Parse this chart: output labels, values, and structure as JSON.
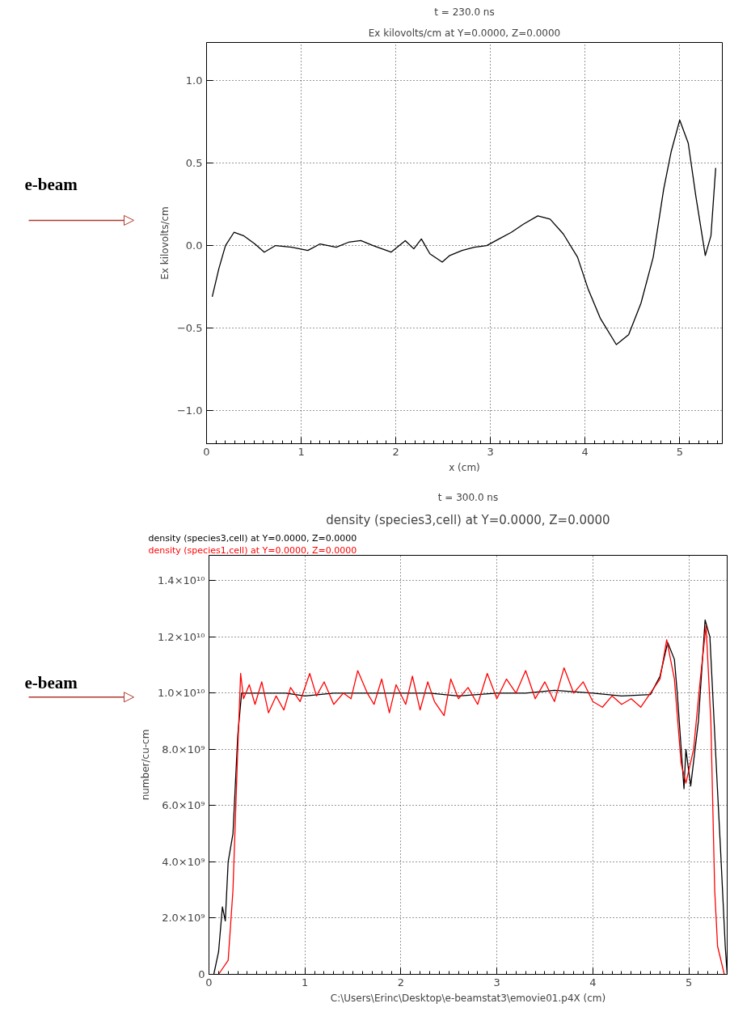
{
  "chart_data": [
    {
      "type": "line",
      "title": "t = 230.0 ns",
      "subtitle": "Ex kilovolts/cm at Y=0.0000, Z=0.0000",
      "xlabel": "x (cm)",
      "ylabel": "Ex kilovolts/cm",
      "xlim": [
        0,
        5.45
      ],
      "ylim": [
        -1.2,
        1.23
      ],
      "xticks": [
        0,
        1,
        2,
        3,
        4,
        5
      ],
      "yticks": [
        {
          "value": -1.0,
          "label": "−1.0"
        },
        {
          "value": -0.5,
          "label": "−0.5"
        },
        {
          "value": 0.0,
          "label": "0.0"
        },
        {
          "value": 0.5,
          "label": "0.5"
        },
        {
          "value": 1.0,
          "label": "1.0"
        }
      ],
      "grid": true,
      "annotations": [
        "e-beam"
      ],
      "series": [
        {
          "color": "#000000",
          "x": [
            0.06,
            0.13,
            0.2,
            0.29,
            0.39,
            0.51,
            0.61,
            0.73,
            0.9,
            1.07,
            1.2,
            1.37,
            1.5,
            1.63,
            1.76,
            1.95,
            2.1,
            2.19,
            2.27,
            2.36,
            2.49,
            2.57,
            2.7,
            2.83,
            2.96,
            3.09,
            3.22,
            3.35,
            3.5,
            3.63,
            3.77,
            3.92,
            4.03,
            4.16,
            4.33,
            4.46,
            4.59,
            4.72,
            4.83,
            4.91,
            5.0,
            5.09,
            5.17,
            5.27,
            5.33,
            5.38
          ],
          "values": [
            -0.31,
            -0.14,
            0.0,
            0.08,
            0.06,
            0.01,
            -0.04,
            0.0,
            -0.01,
            -0.03,
            0.01,
            -0.01,
            0.02,
            0.03,
            0.0,
            -0.04,
            0.03,
            -0.02,
            0.04,
            -0.05,
            -0.1,
            -0.06,
            -0.03,
            -0.01,
            0.0,
            0.04,
            0.08,
            0.13,
            0.18,
            0.16,
            0.07,
            -0.07,
            -0.26,
            -0.44,
            -0.6,
            -0.54,
            -0.35,
            -0.07,
            0.34,
            0.57,
            0.76,
            0.62,
            0.3,
            -0.06,
            0.06,
            0.47
          ]
        }
      ]
    },
    {
      "type": "line",
      "title": "t = 300.0 ns",
      "subtitle": "density (species3,cell) at Y=0.0000, Z=0.0000",
      "xlabel": "C:\\Users\\Erinc\\Desktop\\e-beamstat3\\emovie01.p4X (cm)",
      "ylabel": "number/cu-cm",
      "xlim": [
        0,
        5.4
      ],
      "ylim": [
        0,
        14900000000.0
      ],
      "xticks": [
        0,
        1,
        2,
        3,
        4,
        5
      ],
      "yticks": [
        0,
        {
          "value": 2000000000.0,
          "label": "2.0×10⁹"
        },
        {
          "value": 4000000000.0,
          "label": "4.0×10⁹"
        },
        {
          "value": 6000000000.0,
          "label": "6.0×10⁹"
        },
        {
          "value": 8000000000.0,
          "label": "8.0×10⁹"
        },
        {
          "value": 10000000000.0,
          "label": "1.0×10¹⁰"
        },
        {
          "value": 12000000000.0,
          "label": "1.2×10¹⁰"
        },
        {
          "value": 14000000000.0,
          "label": "1.4×10¹⁰"
        }
      ],
      "grid": true,
      "legend": "top left",
      "annotations": [
        "e-beam"
      ],
      "series": [
        {
          "name": "density (species3,cell) at Y=0.0000, Z=0.0000",
          "color": "#000000",
          "x": [
            0.05,
            0.1,
            0.14,
            0.17,
            0.2,
            0.25,
            0.3,
            0.34,
            0.5,
            0.8,
            1.0,
            1.3,
            1.6,
            2.0,
            2.3,
            2.6,
            3.0,
            3.3,
            3.6,
            4.0,
            4.3,
            4.6,
            4.7,
            4.78,
            4.85,
            4.88,
            4.95,
            4.97,
            5.02,
            5.1,
            5.17,
            5.22,
            5.3,
            5.33,
            5.38,
            5.4
          ],
          "values": [
            0,
            800000000.0,
            2400000000.0,
            1900000000.0,
            4000000000.0,
            5000000000.0,
            8500000000.0,
            10000000000.0,
            10000000000.0,
            10000000000.0,
            9900000000.0,
            10000000000.0,
            10000000000.0,
            10000000000.0,
            10000000000.0,
            9900000000.0,
            10000000000.0,
            10000000000.0,
            10100000000.0,
            10000000000.0,
            9900000000.0,
            9950000000.0,
            10600000000.0,
            11800000000.0,
            11200000000.0,
            10000000000.0,
            6600000000.0,
            8000000000.0,
            6700000000.0,
            9000000000.0,
            12600000000.0,
            12000000000.0,
            6500000000.0,
            4500000000.0,
            1000000000.0,
            0
          ]
        },
        {
          "name": "density (species1,cell) at Y=0.0000, Z=0.0000",
          "color": "#ff0000",
          "x": [
            0.1,
            0.2,
            0.25,
            0.3,
            0.33,
            0.36,
            0.42,
            0.48,
            0.55,
            0.62,
            0.7,
            0.78,
            0.85,
            0.95,
            1.05,
            1.12,
            1.2,
            1.3,
            1.4,
            1.48,
            1.55,
            1.65,
            1.72,
            1.8,
            1.88,
            1.95,
            2.05,
            2.12,
            2.2,
            2.28,
            2.35,
            2.45,
            2.52,
            2.6,
            2.7,
            2.8,
            2.9,
            3.0,
            3.1,
            3.2,
            3.3,
            3.4,
            3.5,
            3.6,
            3.7,
            3.8,
            3.9,
            4.0,
            4.1,
            4.2,
            4.3,
            4.4,
            4.5,
            4.6,
            4.7,
            4.77,
            4.85,
            4.92,
            4.97,
            5.05,
            5.12,
            5.18,
            5.23,
            5.27,
            5.3,
            5.37
          ],
          "values": [
            0,
            500000000.0,
            3000000000.0,
            8000000000.0,
            10700000000.0,
            9800000000.0,
            10300000000.0,
            9600000000.0,
            10400000000.0,
            9300000000.0,
            9900000000.0,
            9400000000.0,
            10200000000.0,
            9700000000.0,
            10700000000.0,
            9900000000.0,
            10400000000.0,
            9600000000.0,
            10000000000.0,
            9800000000.0,
            10800000000.0,
            10000000000.0,
            9600000000.0,
            10500000000.0,
            9300000000.0,
            10300000000.0,
            9600000000.0,
            10600000000.0,
            9400000000.0,
            10400000000.0,
            9700000000.0,
            9200000000.0,
            10500000000.0,
            9800000000.0,
            10200000000.0,
            9600000000.0,
            10700000000.0,
            9800000000.0,
            10500000000.0,
            10000000000.0,
            10800000000.0,
            9800000000.0,
            10400000000.0,
            9700000000.0,
            10900000000.0,
            10000000000.0,
            10400000000.0,
            9700000000.0,
            9500000000.0,
            9900000000.0,
            9600000000.0,
            9800000000.0,
            9500000000.0,
            10000000000.0,
            10500000000.0,
            11900000000.0,
            10500000000.0,
            7500000000.0,
            6800000000.0,
            8000000000.0,
            10500000000.0,
            12400000000.0,
            9000000000.0,
            3000000000.0,
            1000000000.0,
            0
          ]
        }
      ]
    }
  ]
}
